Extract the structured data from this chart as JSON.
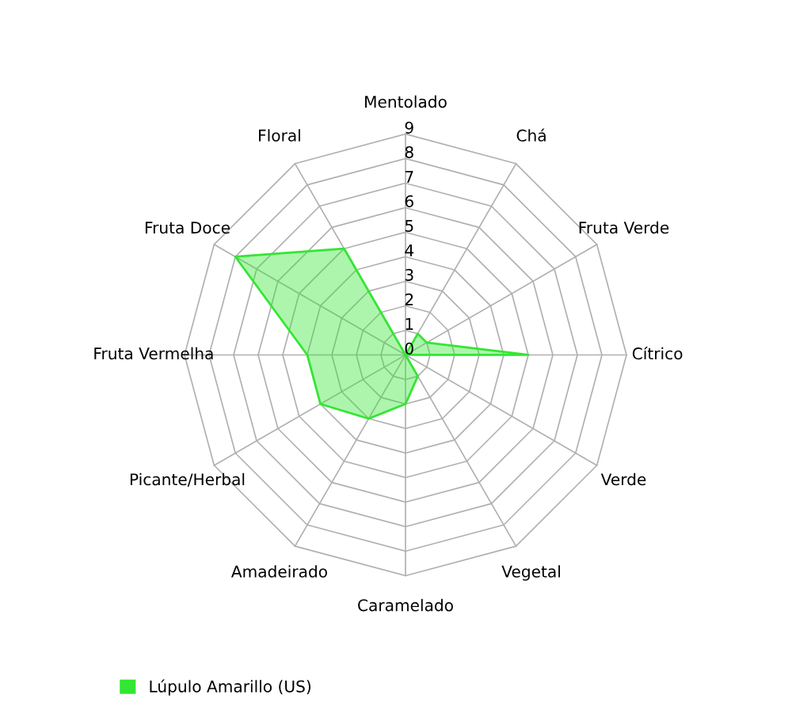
{
  "chart_data": {
    "type": "radar",
    "categories": [
      "Mentolado",
      "Chá",
      "Fruta Verde",
      "Cítrico",
      "Verde",
      "Vegetal",
      "Caramelado",
      "Amadeirado",
      "Picante/Herbal",
      "Fruta Vermelha",
      "Fruta Doce",
      "Floral"
    ],
    "series": [
      {
        "name": "Lúpulo Amarillo (US)",
        "color": "#33e633",
        "values": [
          0,
          1,
          1,
          5,
          0,
          1,
          2,
          3,
          4,
          4,
          8,
          5
        ]
      }
    ],
    "ylim": [
      0,
      9
    ],
    "yticks": [
      0,
      1,
      2,
      3,
      4,
      5,
      6,
      7,
      8,
      9
    ],
    "grid": true,
    "legend": "bottom left"
  }
}
